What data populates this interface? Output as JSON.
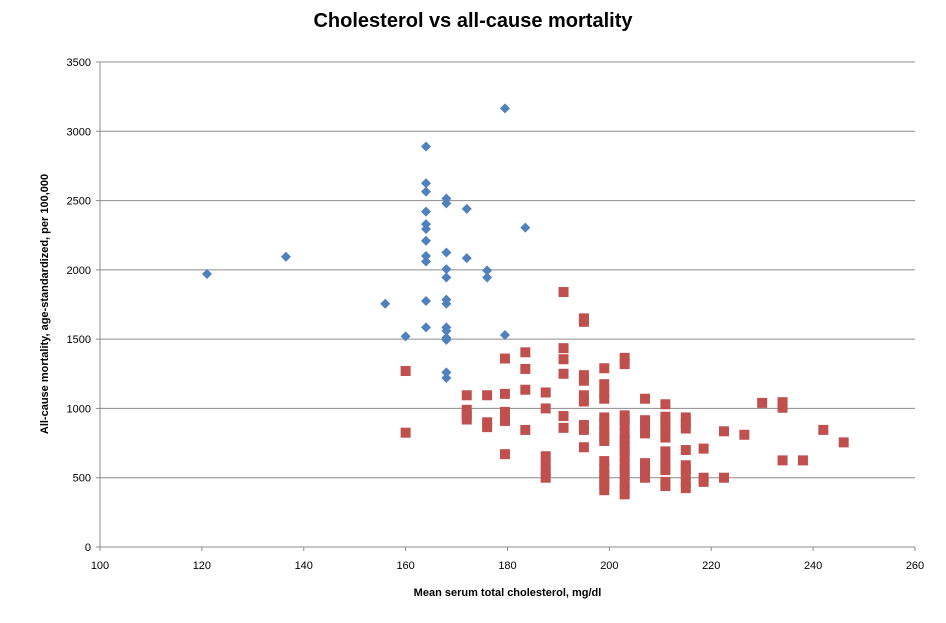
{
  "chart_data": {
    "type": "scatter",
    "title": "Cholesterol vs all-cause mortality",
    "xlabel": "Mean serum total cholesterol, mg/dl",
    "ylabel": "All-cause mortality, age-standardized,  per 100,000",
    "xlim": [
      100,
      260
    ],
    "ylim": [
      0,
      3500
    ],
    "xticks": [
      100,
      120,
      140,
      160,
      180,
      200,
      220,
      240,
      260
    ],
    "yticks": [
      0,
      500,
      1000,
      1500,
      2000,
      2500,
      3000,
      3500
    ],
    "grid": "horizontal",
    "legend": "none",
    "series": [
      {
        "marker": "diamond",
        "color": "#4F81BD",
        "points": [
          [
            121,
            1970
          ],
          [
            136.5,
            2095
          ],
          [
            156,
            1755
          ],
          [
            160,
            1520
          ],
          [
            164,
            2890
          ],
          [
            164,
            2625
          ],
          [
            164,
            2565
          ],
          [
            164,
            2420
          ],
          [
            164,
            2330
          ],
          [
            164,
            2295
          ],
          [
            164,
            2210
          ],
          [
            164,
            2100
          ],
          [
            164,
            2060
          ],
          [
            164,
            1775
          ],
          [
            164,
            1585
          ],
          [
            168,
            2515
          ],
          [
            168,
            2480
          ],
          [
            168,
            2125
          ],
          [
            168,
            2005
          ],
          [
            168,
            1945
          ],
          [
            168,
            1785
          ],
          [
            168,
            1755
          ],
          [
            168,
            1585
          ],
          [
            168,
            1560
          ],
          [
            168,
            1510
          ],
          [
            168,
            1495
          ],
          [
            168,
            1260
          ],
          [
            168,
            1220
          ],
          [
            172,
            2440
          ],
          [
            172,
            2085
          ],
          [
            176,
            1995
          ],
          [
            176,
            1945
          ],
          [
            179.5,
            3165
          ],
          [
            179.5,
            1530
          ],
          [
            183.5,
            2305
          ]
        ]
      },
      {
        "marker": "square",
        "color": "#C0504D",
        "points": [
          [
            160,
            1270
          ],
          [
            160,
            825
          ],
          [
            172,
            1095
          ],
          [
            172,
            990
          ],
          [
            172,
            950
          ],
          [
            172,
            920
          ],
          [
            176,
            1095
          ],
          [
            176,
            900
          ],
          [
            176,
            865
          ],
          [
            179.5,
            1360
          ],
          [
            179.5,
            1105
          ],
          [
            179.5,
            975
          ],
          [
            179.5,
            930
          ],
          [
            179.5,
            910
          ],
          [
            179.5,
            670
          ],
          [
            183.5,
            1405
          ],
          [
            183.5,
            1285
          ],
          [
            183.5,
            1135
          ],
          [
            183.5,
            845
          ],
          [
            187.5,
            1115
          ],
          [
            187.5,
            1000
          ],
          [
            187.5,
            655
          ],
          [
            187.5,
            595
          ],
          [
            187.5,
            545
          ],
          [
            187.5,
            500
          ],
          [
            191,
            1840
          ],
          [
            191,
            1435
          ],
          [
            191,
            1355
          ],
          [
            191,
            1250
          ],
          [
            191,
            945
          ],
          [
            191,
            860
          ],
          [
            195,
            1650
          ],
          [
            195,
            1625
          ],
          [
            195,
            1240
          ],
          [
            195,
            1200
          ],
          [
            195,
            1095
          ],
          [
            195,
            1050
          ],
          [
            195,
            880
          ],
          [
            195,
            845
          ],
          [
            195,
            720
          ],
          [
            199,
            1290
          ],
          [
            199,
            1175
          ],
          [
            199,
            1115
          ],
          [
            199,
            1070
          ],
          [
            199,
            935
          ],
          [
            199,
            885
          ],
          [
            199,
            845
          ],
          [
            199,
            795
          ],
          [
            199,
            765
          ],
          [
            199,
            620
          ],
          [
            199,
            570
          ],
          [
            199,
            525
          ],
          [
            199,
            480
          ],
          [
            199,
            445
          ],
          [
            199,
            410
          ],
          [
            203,
            1365
          ],
          [
            203,
            1320
          ],
          [
            203,
            950
          ],
          [
            203,
            915
          ],
          [
            203,
            880
          ],
          [
            203,
            815
          ],
          [
            203,
            770
          ],
          [
            203,
            730
          ],
          [
            203,
            695
          ],
          [
            203,
            655
          ],
          [
            203,
            600
          ],
          [
            203,
            565
          ],
          [
            203,
            520
          ],
          [
            203,
            460
          ],
          [
            203,
            420
          ],
          [
            203,
            380
          ],
          [
            207,
            1070
          ],
          [
            207,
            915
          ],
          [
            207,
            880
          ],
          [
            207,
            820
          ],
          [
            207,
            605
          ],
          [
            207,
            570
          ],
          [
            207,
            530
          ],
          [
            207,
            500
          ],
          [
            211,
            1030
          ],
          [
            211,
            940
          ],
          [
            211,
            910
          ],
          [
            211,
            870
          ],
          [
            211,
            830
          ],
          [
            211,
            790
          ],
          [
            211,
            690
          ],
          [
            211,
            640
          ],
          [
            211,
            590
          ],
          [
            211,
            555
          ],
          [
            211,
            470
          ],
          [
            211,
            440
          ],
          [
            215,
            935
          ],
          [
            215,
            895
          ],
          [
            215,
            855
          ],
          [
            215,
            700
          ],
          [
            215,
            590
          ],
          [
            215,
            560
          ],
          [
            215,
            520
          ],
          [
            215,
            465
          ],
          [
            215,
            425
          ],
          [
            218.5,
            710
          ],
          [
            218.5,
            500
          ],
          [
            218.5,
            470
          ],
          [
            222.5,
            835
          ],
          [
            222.5,
            500
          ],
          [
            226.5,
            810
          ],
          [
            230,
            1040
          ],
          [
            234,
            1045
          ],
          [
            234,
            1005
          ],
          [
            234,
            625
          ],
          [
            238,
            625
          ],
          [
            242,
            845
          ],
          [
            246,
            755
          ]
        ]
      }
    ]
  }
}
